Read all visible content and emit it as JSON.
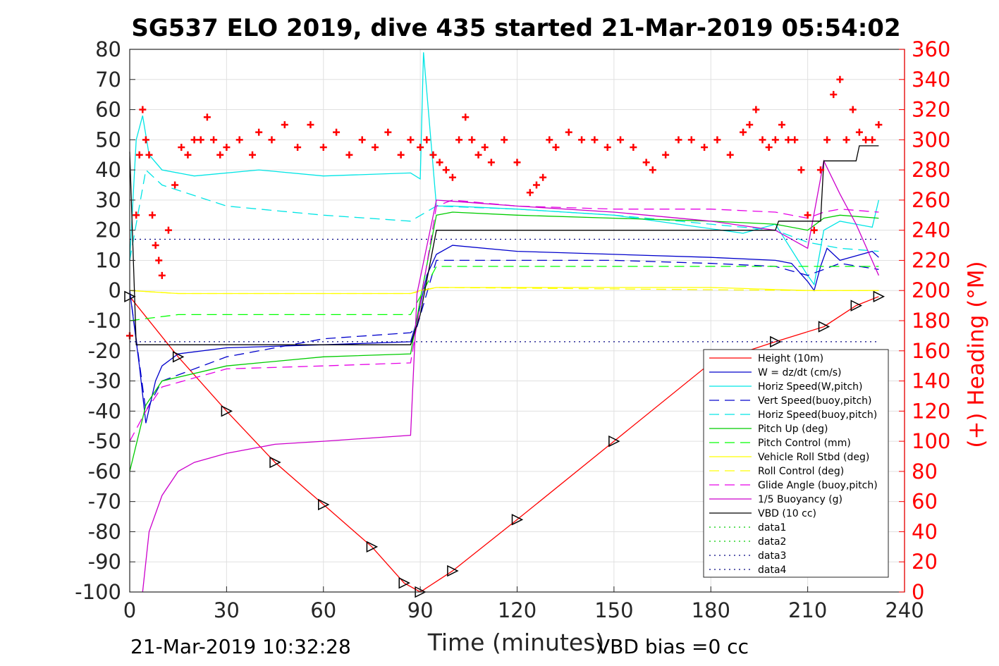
{
  "chart_data": {
    "type": "line",
    "title": "SG537 ELO 2019, dive 435 started 21-Mar-2019 05:54:02",
    "xlabel": "Time (minutes)",
    "ylabel_right": "(+) Heading (°M)",
    "xlim": [
      0,
      240
    ],
    "ylim_left": [
      -100,
      80
    ],
    "ylim_right": [
      0,
      360
    ],
    "x_ticks": [
      "0",
      "30",
      "60",
      "90",
      "120",
      "150",
      "180",
      "210",
      "240"
    ],
    "y_ticks_left": [
      "80",
      "70",
      "60",
      "50",
      "40",
      "30",
      "20",
      "10",
      "0",
      "-10",
      "-20",
      "-30",
      "-40",
      "-50",
      "-60",
      "-70",
      "-80",
      "-90",
      "-100"
    ],
    "y_ticks_right": [
      "360",
      "340",
      "320",
      "300",
      "280",
      "260",
      "240",
      "220",
      "200",
      "180",
      "160",
      "140",
      "120",
      "100",
      "80",
      "60",
      "40",
      "20",
      "0"
    ],
    "grid": true,
    "legend_position": "bottom-right",
    "footer_left": "21-Mar-2019 10:32:28",
    "footer_right": "VBD bias =0 cc",
    "series": [
      {
        "name": "Height (10m)",
        "color": "#ff0000",
        "style": "solid",
        "x": [
          0,
          15,
          30,
          45,
          60,
          75,
          85,
          90,
          100,
          120,
          150,
          180,
          200,
          215,
          225,
          232
        ],
        "y": [
          -2,
          -22,
          -40,
          -57,
          -71,
          -85,
          -97,
          -100,
          -93,
          -76,
          -50,
          -24,
          -17,
          -12,
          -5,
          -2
        ]
      },
      {
        "name": "W = dz/dt (cm/s)",
        "color": "#0000cc",
        "style": "solid",
        "x": [
          0,
          3,
          5,
          8,
          10,
          15,
          30,
          60,
          87,
          89,
          92,
          95,
          100,
          120,
          150,
          180,
          200,
          205,
          210,
          212,
          214,
          216,
          220,
          230,
          232
        ],
        "y": [
          0,
          -25,
          -44,
          -30,
          -25,
          -21,
          -19,
          -18,
          -17,
          -10,
          5,
          12,
          15,
          13,
          12,
          11,
          10,
          9,
          3,
          0,
          8,
          14,
          10,
          13,
          11
        ]
      },
      {
        "name": "Horiz Speed(W,pitch)",
        "color": "#00e5e5",
        "style": "solid",
        "x": [
          0,
          2,
          4,
          6,
          10,
          20,
          40,
          60,
          87,
          90,
          91,
          95,
          100,
          120,
          150,
          170,
          190,
          200,
          210,
          212,
          215,
          220,
          225,
          230,
          232
        ],
        "y": [
          10,
          50,
          58,
          45,
          40,
          38,
          40,
          38,
          39,
          37,
          79,
          28,
          28,
          27,
          25,
          22,
          19,
          22,
          5,
          2,
          20,
          23,
          22,
          21,
          30
        ]
      },
      {
        "name": "Vert Speed(buoy,pitch)",
        "color": "#0000cc",
        "style": "dashed",
        "x": [
          0,
          5,
          10,
          30,
          60,
          87,
          89,
          95,
          120,
          150,
          180,
          200,
          210,
          215,
          220,
          232
        ],
        "y": [
          0,
          -40,
          -30,
          -22,
          -16,
          -14,
          -12,
          10,
          10,
          10,
          9,
          8,
          5,
          7,
          9,
          7
        ]
      },
      {
        "name": "Horiz Speed(buoy,pitch)",
        "color": "#00e5e5",
        "style": "dashed",
        "x": [
          0,
          5,
          10,
          30,
          60,
          87,
          95,
          120,
          150,
          180,
          200,
          210,
          220,
          232
        ],
        "y": [
          10,
          40,
          35,
          28,
          25,
          23,
          28,
          27,
          25,
          22,
          20,
          16,
          14,
          13
        ]
      },
      {
        "name": "Pitch Up (deg)",
        "color": "#00cc00",
        "style": "solid",
        "x": [
          0,
          5,
          10,
          30,
          60,
          87,
          90,
          95,
          100,
          120,
          150,
          180,
          200,
          210,
          215,
          220,
          232
        ],
        "y": [
          -60,
          -38,
          -30,
          -25,
          -22,
          -21,
          -3,
          25,
          26,
          25,
          24,
          23,
          22,
          20,
          24,
          25,
          24
        ]
      },
      {
        "name": "Pitch Control (mm)",
        "color": "#00ff00",
        "style": "dashed",
        "x": [
          0,
          15,
          87,
          95,
          120,
          150,
          200,
          232
        ],
        "y": [
          -10,
          -8,
          -8,
          8,
          8,
          8,
          8,
          8
        ]
      },
      {
        "name": "Vehicle Roll Stbd (deg)",
        "color": "#ffff00",
        "style": "solid",
        "x": [
          0,
          15,
          30,
          60,
          87,
          90,
          95,
          120,
          150,
          180,
          210,
          232
        ],
        "y": [
          0,
          -1,
          -1,
          -1,
          -1,
          0,
          1,
          1,
          1,
          1,
          0,
          0
        ]
      },
      {
        "name": "Roll Control (deg)",
        "color": "#ffff00",
        "style": "dashed",
        "x": [
          0,
          15,
          87,
          95,
          210,
          232
        ],
        "y": [
          0,
          -1,
          -1,
          1,
          0,
          0
        ]
      },
      {
        "name": "Glide Angle (buoy,pitch)",
        "color": "#e600e6",
        "style": "dashed",
        "x": [
          0,
          5,
          10,
          30,
          60,
          87,
          95,
          100,
          120,
          150,
          180,
          200,
          210,
          215,
          220,
          232
        ],
        "y": [
          -50,
          -40,
          -32,
          -26,
          -25,
          -24,
          28,
          30,
          28,
          27,
          27,
          26,
          24,
          26,
          27,
          26
        ]
      },
      {
        "name": "1/5 Buoyancy (g)",
        "color": "#cc00cc",
        "style": "solid",
        "x": [
          4,
          6,
          10,
          15,
          20,
          30,
          45,
          60,
          87,
          89,
          95,
          120,
          150,
          180,
          200,
          210,
          215,
          220,
          225,
          232
        ],
        "y": [
          -100,
          -80,
          -68,
          -60,
          -57,
          -54,
          -51,
          -50,
          -48,
          -1,
          30,
          28,
          26,
          23,
          20,
          14,
          43,
          32,
          22,
          5
        ]
      },
      {
        "name": "VBD (10 cc)",
        "color": "#000000",
        "style": "solid",
        "x": [
          0,
          2,
          3,
          87,
          90,
          95,
          120,
          150,
          180,
          200,
          201,
          214,
          215,
          225,
          226,
          232
        ],
        "y": [
          46,
          -18,
          -18,
          -18,
          -8,
          20,
          20,
          20,
          20,
          20,
          23,
          23,
          43,
          43,
          48,
          48
        ]
      },
      {
        "name": "data1",
        "color": "#00cc00",
        "style": "dotted",
        "x": [],
        "y": []
      },
      {
        "name": "data2",
        "color": "#00cc00",
        "style": "dotted",
        "x": [],
        "y": []
      },
      {
        "name": "data3",
        "color": "#000080",
        "style": "dotted",
        "x": [
          0,
          232
        ],
        "y": [
          -17,
          -17
        ]
      },
      {
        "name": "data4",
        "color": "#000080",
        "style": "dotted",
        "x": [
          0,
          232
        ],
        "y": [
          17,
          17
        ]
      }
    ],
    "heading": {
      "name": "Heading",
      "axis": "right",
      "color": "#ff0000",
      "marker": "+",
      "x": [
        0,
        2,
        3,
        4,
        5,
        6,
        7,
        8,
        9,
        10,
        12,
        14,
        16,
        18,
        20,
        22,
        24,
        26,
        28,
        30,
        34,
        38,
        40,
        44,
        48,
        52,
        56,
        60,
        64,
        68,
        72,
        76,
        80,
        84,
        87,
        90,
        92,
        94,
        96,
        98,
        100,
        102,
        104,
        106,
        108,
        110,
        112,
        116,
        120,
        124,
        126,
        128,
        130,
        132,
        136,
        140,
        144,
        148,
        152,
        156,
        160,
        162,
        166,
        170,
        174,
        178,
        182,
        186,
        190,
        192,
        194,
        196,
        198,
        200,
        202,
        204,
        206,
        208,
        210,
        212,
        214,
        216,
        218,
        220,
        222,
        224,
        226,
        228,
        230,
        232
      ],
      "y": [
        170,
        250,
        290,
        320,
        300,
        290,
        250,
        230,
        220,
        210,
        240,
        270,
        295,
        290,
        300,
        300,
        315,
        300,
        290,
        295,
        300,
        290,
        305,
        300,
        310,
        295,
        310,
        295,
        305,
        290,
        300,
        295,
        305,
        290,
        300,
        295,
        300,
        290,
        285,
        280,
        275,
        300,
        315,
        300,
        290,
        295,
        285,
        300,
        285,
        265,
        270,
        275,
        300,
        295,
        305,
        300,
        300,
        295,
        300,
        295,
        285,
        280,
        290,
        300,
        300,
        295,
        300,
        290,
        305,
        310,
        320,
        300,
        295,
        300,
        310,
        300,
        300,
        280,
        250,
        240,
        280,
        300,
        330,
        340,
        300,
        320,
        305,
        300,
        300,
        310
      ]
    }
  }
}
